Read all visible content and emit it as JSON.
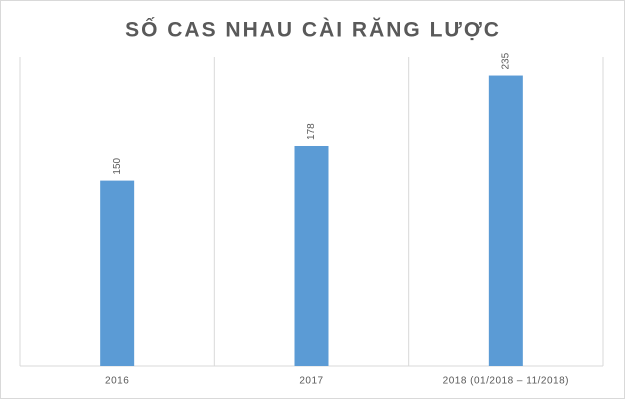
{
  "chart_data": {
    "type": "bar",
    "title": "SỐ CAS NHAU CÀI RĂNG LƯỢC",
    "categories": [
      "2016",
      "2017",
      "2018 (01/2018 – 11/2018)"
    ],
    "values": [
      150,
      178,
      235
    ],
    "color": "#5b9bd5",
    "ylim": [
      0,
      250
    ],
    "grid": true
  }
}
